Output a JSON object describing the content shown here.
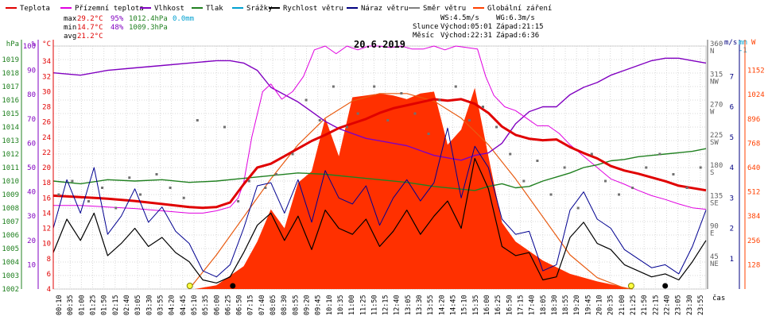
{
  "legend": [
    {
      "label": "Teplota",
      "color": "#e00000"
    },
    {
      "label": "Přízemní teplota",
      "color": "#e000e0"
    },
    {
      "label": "Vlhkost",
      "color": "#8000c0"
    },
    {
      "label": "Tlak",
      "color": "#208020"
    },
    {
      "label": "Srážky",
      "color": "#00a0d0"
    },
    {
      "label": "Rychlost větru",
      "color": "#000000"
    },
    {
      "label": "Náraz větru",
      "color": "#000080"
    },
    {
      "label": "Směr větru",
      "color": "#808080"
    },
    {
      "label": "Globální záření",
      "color": "#ff4000"
    }
  ],
  "stats": {
    "max": {
      "label": "max",
      "temp": "29.2°C",
      "hum": "95%",
      "press": "1012.4hPa",
      "rain": "0.0mm"
    },
    "min": {
      "label": "min",
      "temp": "14.7°C",
      "hum": "48%",
      "press": "1009.3hPa"
    },
    "avg": {
      "label": "avg",
      "temp": "21.2°C"
    },
    "wind": {
      "ws": "WS:4.5m/s",
      "wg": "WG:6.3m/s"
    },
    "sun": {
      "label": "Slunce",
      "rise": "Východ:05:01",
      "set": "Západ:21:15"
    },
    "moon": {
      "label": "Měsíc",
      "rise": "Východ:22:31",
      "set": "Západ:6:36"
    }
  },
  "chart_data": {
    "type": "line",
    "title": "20.6.2019",
    "xlabel": "čas",
    "x_ticks": [
      "00:10",
      "00:35",
      "01:00",
      "01:25",
      "01:50",
      "02:15",
      "02:40",
      "03:05",
      "03:30",
      "03:55",
      "04:20",
      "04:45",
      "05:10",
      "05:35",
      "06:00",
      "06:25",
      "06:50",
      "07:15",
      "07:40",
      "08:05",
      "08:30",
      "08:55",
      "09:20",
      "09:45",
      "10:10",
      "10:35",
      "11:00",
      "11:25",
      "11:50",
      "12:15",
      "12:40",
      "13:05",
      "13:30",
      "13:55",
      "14:20",
      "14:45",
      "15:10",
      "15:35",
      "16:00",
      "16:25",
      "16:50",
      "17:15",
      "17:40",
      "18:05",
      "18:30",
      "18:55",
      "19:20",
      "19:45",
      "20:10",
      "20:35",
      "21:00",
      "21:25",
      "21:50",
      "22:15",
      "22:40",
      "23:05",
      "23:30",
      "23:55"
    ],
    "axes": {
      "pressure": {
        "unit": "hPa",
        "range": [
          1002,
          1020
        ],
        "ticks": [
          "1002",
          "1003",
          "1004",
          "1005",
          "1006",
          "1007",
          "1008",
          "1009",
          "1010",
          "1011",
          "1012",
          "1013",
          "1014",
          "1015",
          "1016",
          "1017",
          "1018",
          "1019"
        ]
      },
      "humidity": {
        "unit": "%",
        "range": [
          0,
          100
        ],
        "ticks": [
          "10",
          "20",
          "30",
          "40",
          "50",
          "60",
          "70",
          "80",
          "90",
          "100"
        ]
      },
      "temperature": {
        "unit": "°C",
        "range": [
          4,
          36
        ],
        "ticks": [
          "4",
          "6",
          "8",
          "10",
          "12",
          "14",
          "16",
          "18",
          "20",
          "22",
          "24",
          "26",
          "28",
          "30",
          "32",
          "34"
        ]
      },
      "direction": {
        "range": [
          0,
          360
        ],
        "ticks": [
          "360",
          "315",
          "270",
          "225",
          "180",
          "135",
          "90",
          "45"
        ],
        "compass": [
          "N",
          "NW",
          "W",
          "SW",
          "S",
          "SE",
          "E",
          "NE"
        ]
      },
      "wind": {
        "unit": "m/s",
        "range": [
          0,
          8
        ],
        "ticks": [
          "1",
          "2",
          "3",
          "4",
          "5",
          "6",
          "7"
        ]
      },
      "rain": {
        "unit": "mm",
        "range": [
          0,
          1
        ],
        "ticks": [
          "-1"
        ]
      },
      "radiation": {
        "unit": "W",
        "range": [
          0,
          1280
        ],
        "ticks": [
          "128",
          "256",
          "384",
          "512",
          "640",
          "768",
          "896",
          "1024",
          "1152"
        ]
      }
    },
    "series": {
      "temperature": {
        "name": "Teplota",
        "x": [
          0,
          1,
          2,
          3,
          4,
          5,
          5.5,
          6,
          6.5,
          7,
          7.5,
          8,
          8.5,
          9,
          9.5,
          10,
          10.5,
          11,
          11.5,
          12,
          12.5,
          13,
          13.5,
          14,
          14.5,
          15,
          15.5,
          16,
          16.5,
          17,
          17.5,
          18,
          18.5,
          19,
          19.5,
          20,
          20.5,
          21,
          21.5,
          22,
          22.5,
          23,
          23.5,
          24
        ],
        "y": [
          16.3,
          16.1,
          15.9,
          15.6,
          15.2,
          14.8,
          14.7,
          14.8,
          15.4,
          17.8,
          20.0,
          20.5,
          21.5,
          22.5,
          23.5,
          24.3,
          25.2,
          25.8,
          26.4,
          27.2,
          27.8,
          28.2,
          28.6,
          29.0,
          28.8,
          29.0,
          28.4,
          27.2,
          25.4,
          24.3,
          23.8,
          23.6,
          23.7,
          22.7,
          21.9,
          21.2,
          20.2,
          19.6,
          19.2,
          18.7,
          18.2,
          17.6,
          17.3,
          17.0
        ]
      },
      "ground_temperature": {
        "name": "Přízemní teplota",
        "x": [
          0,
          1,
          2,
          3,
          4,
          5,
          5.5,
          6,
          6.5,
          6.8,
          7,
          7.3,
          7.7,
          8,
          8.4,
          8.8,
          9.2,
          9.6,
          10,
          10.4,
          10.8,
          11.2,
          11.6,
          12,
          12.4,
          12.8,
          13.2,
          13.6,
          14,
          14.4,
          14.8,
          15.2,
          15.6,
          15.9,
          16.2,
          16.6,
          17,
          17.4,
          17.8,
          18.2,
          18.6,
          19,
          19.5,
          20,
          20.5,
          21,
          21.5,
          22,
          22.5,
          23,
          23.5,
          24
        ],
        "y": [
          15.0,
          15.0,
          14.8,
          14.6,
          14.3,
          14.0,
          14.0,
          14.3,
          14.8,
          16,
          18,
          24,
          30,
          31,
          29,
          30,
          32,
          35.5,
          36,
          35,
          36,
          35.5,
          36,
          36,
          35.8,
          36,
          35.6,
          35.6,
          36,
          35.5,
          36,
          35.8,
          35.6,
          32,
          29.5,
          28,
          27.5,
          26.5,
          25.5,
          25.5,
          24.5,
          23.0,
          21.5,
          20.0,
          18.5,
          17.8,
          17.0,
          16.3,
          15.8,
          15.2,
          14.7,
          14.5
        ]
      },
      "humidity": {
        "name": "Vlhkost",
        "x": [
          0,
          1,
          2,
          3,
          4,
          5,
          6,
          6.5,
          7,
          7.5,
          8,
          8.5,
          9,
          9.5,
          10,
          10.5,
          11,
          11.5,
          12,
          12.5,
          13,
          13.5,
          14,
          14.5,
          15,
          15.5,
          16,
          16.5,
          17,
          17.5,
          18,
          18.5,
          19,
          19.5,
          20,
          20.5,
          21,
          21.5,
          22,
          22.5,
          23,
          23.5,
          24
        ],
        "y": [
          89,
          88,
          90,
          91,
          92,
          93,
          94,
          94,
          93,
          90,
          83,
          80,
          77,
          73,
          69,
          66,
          64,
          62,
          61,
          60,
          59,
          57,
          55,
          54,
          53,
          55,
          56,
          60,
          68,
          73,
          75,
          75,
          80,
          83,
          85,
          88,
          90,
          92,
          94,
          95,
          95,
          94,
          93
        ]
      },
      "pressure": {
        "name": "Tlak",
        "x": [
          0,
          1,
          2,
          3,
          4,
          5,
          6,
          7,
          8,
          9,
          10,
          11,
          12,
          13,
          14,
          15,
          15.5,
          16,
          16.5,
          17,
          17.5,
          18,
          18.5,
          19,
          19.5,
          20,
          20.5,
          21,
          21.5,
          22,
          22.5,
          23,
          23.5,
          24
        ],
        "y": [
          1010.0,
          1009.8,
          1010.1,
          1010.0,
          1010.1,
          1009.9,
          1010.0,
          1010.2,
          1010.4,
          1010.6,
          1010.5,
          1010.3,
          1010.1,
          1009.9,
          1009.6,
          1009.4,
          1009.3,
          1009.6,
          1009.8,
          1009.5,
          1009.6,
          1010.0,
          1010.3,
          1010.6,
          1011.0,
          1011.2,
          1011.5,
          1011.6,
          1011.8,
          1011.9,
          1012.0,
          1012.1,
          1012.2,
          1012.4
        ]
      },
      "wind_speed": {
        "name": "Rychlost větru",
        "x": [
          0,
          0.5,
          1,
          1.5,
          2,
          2.5,
          3,
          3.5,
          4,
          4.5,
          5,
          5.5,
          6,
          6.5,
          7,
          7.5,
          8,
          8.5,
          9,
          9.5,
          10,
          10.5,
          11,
          11.5,
          12,
          12.5,
          13,
          13.5,
          14,
          14.5,
          15,
          15.5,
          16,
          16.5,
          17,
          17.5,
          18,
          18.5,
          19,
          19.5,
          20,
          20.5,
          21,
          21.5,
          22,
          22.5,
          23,
          23.5,
          24
        ],
        "y": [
          1.2,
          2.3,
          1.6,
          2.5,
          1.1,
          1.5,
          2.0,
          1.4,
          1.7,
          1.2,
          0.9,
          0.3,
          0.2,
          0.4,
          1.2,
          2.1,
          2.5,
          1.6,
          2.4,
          1.3,
          2.6,
          2.0,
          1.8,
          2.3,
          1.4,
          1.9,
          2.6,
          1.8,
          2.4,
          2.9,
          2.0,
          4.3,
          3.3,
          1.4,
          1.1,
          1.2,
          0.3,
          0.4,
          1.7,
          2.2,
          1.5,
          1.3,
          0.8,
          0.6,
          0.4,
          0.5,
          0.3,
          0.9,
          1.6
        ]
      },
      "wind_gust": {
        "name": "Náraz větru",
        "x": [
          0,
          0.5,
          1,
          1.5,
          2,
          2.5,
          3,
          3.5,
          4,
          4.5,
          5,
          5.5,
          6,
          6.5,
          7,
          7.5,
          8,
          8.5,
          9,
          9.5,
          10,
          10.5,
          11,
          11.5,
          12,
          12.5,
          13,
          13.5,
          14,
          14.5,
          15,
          15.5,
          16,
          16.5,
          17,
          17.5,
          18,
          18.5,
          19,
          19.5,
          20,
          20.5,
          21,
          21.5,
          22,
          22.5,
          23,
          23.5,
          24
        ],
        "y": [
          2.0,
          3.6,
          2.5,
          4.0,
          1.8,
          2.4,
          3.3,
          2.2,
          2.7,
          1.9,
          1.5,
          0.6,
          0.4,
          0.8,
          2.0,
          3.4,
          3.5,
          2.5,
          3.6,
          2.2,
          3.9,
          3.0,
          2.8,
          3.4,
          2.1,
          3.0,
          3.6,
          2.9,
          3.5,
          5.3,
          3.0,
          4.7,
          4.0,
          2.3,
          1.8,
          1.9,
          0.6,
          0.8,
          2.6,
          3.2,
          2.3,
          2.0,
          1.3,
          1.0,
          0.7,
          0.8,
          0.5,
          1.4,
          2.6
        ]
      },
      "radiation": {
        "name": "Globální záření",
        "x": [
          5.2,
          6,
          7,
          7.5,
          8,
          8.5,
          9,
          9.5,
          10,
          10.5,
          11,
          11.5,
          12,
          12.5,
          13,
          13.5,
          14,
          14.5,
          15,
          15.5,
          16,
          16.5,
          17,
          18,
          19,
          20,
          21,
          21.3
        ],
        "y": [
          0,
          20,
          120,
          250,
          420,
          320,
          560,
          620,
          900,
          700,
          1010,
          1020,
          1030,
          1020,
          1000,
          1030,
          1040,
          760,
          840,
          1060,
          700,
          350,
          250,
          150,
          80,
          40,
          10,
          0
        ]
      },
      "radiation_theoretical": {
        "name": "Globální záření",
        "x": [
          5.0,
          6,
          7,
          8,
          9,
          10,
          11,
          12,
          13,
          14,
          15,
          16,
          17,
          18,
          19,
          20,
          21,
          21.3
        ],
        "y": [
          0,
          180,
          380,
          580,
          760,
          900,
          990,
          1030,
          1030,
          990,
          900,
          760,
          580,
          380,
          180,
          60,
          5,
          0
        ]
      },
      "wind_direction": {
        "name": "Směr větru",
        "x": [
          0.2,
          0.7,
          1.3,
          1.8,
          2.3,
          2.8,
          3.2,
          3.8,
          4.3,
          4.8,
          5.3,
          6.3,
          6.8,
          7.2,
          7.8,
          8.2,
          8.8,
          9.3,
          9.8,
          10.3,
          10.8,
          11.2,
          11.8,
          12.3,
          12.8,
          13.3,
          13.8,
          14.2,
          14.8,
          15.3,
          15.8,
          16.3,
          16.8,
          17.3,
          17.8,
          18.3,
          18.8,
          19.3,
          19.8,
          20.3,
          20.8,
          21.3,
          21.8,
          22.3,
          22.8,
          23.3,
          23.8
        ],
        "y": [
          140,
          160,
          130,
          150,
          120,
          165,
          140,
          170,
          150,
          135,
          250,
          240,
          130,
          160,
          150,
          170,
          200,
          280,
          250,
          300,
          240,
          260,
          300,
          250,
          290,
          260,
          230,
          280,
          300,
          250,
          270,
          240,
          200,
          160,
          190,
          140,
          180,
          120,
          200,
          160,
          140,
          150,
          180,
          200,
          170,
          150,
          180
        ]
      }
    }
  }
}
